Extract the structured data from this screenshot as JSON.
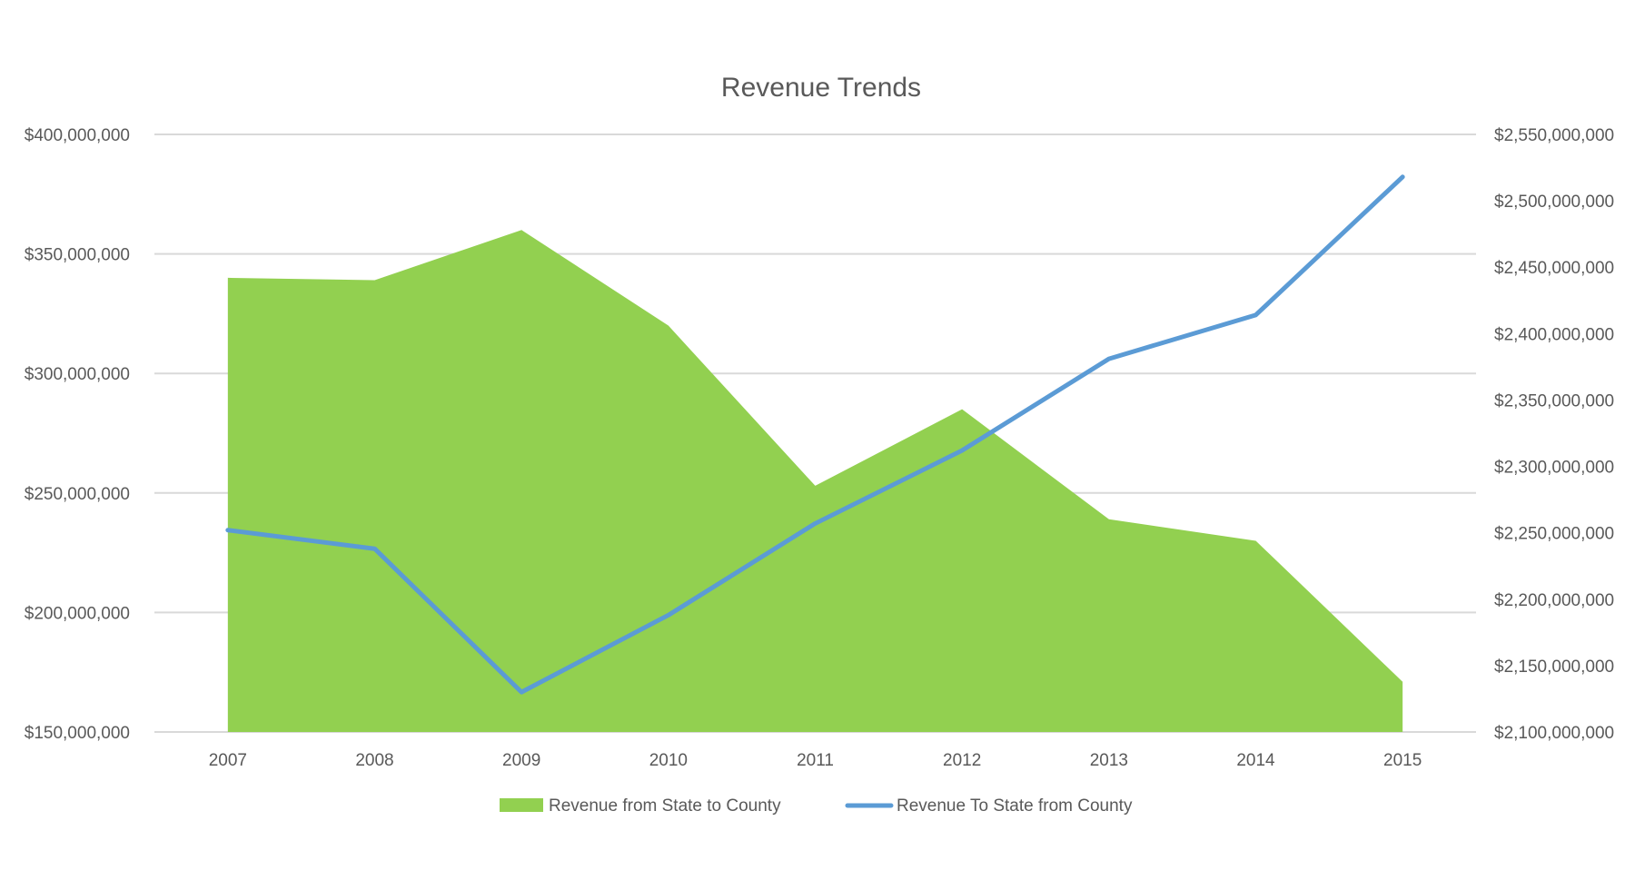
{
  "chart_data": {
    "type": "area",
    "title": "Revenue Trends",
    "xlabel": "",
    "ylabel": "",
    "categories": [
      "2007",
      "2008",
      "2009",
      "2010",
      "2011",
      "2012",
      "2013",
      "2014",
      "2015"
    ],
    "grid": true,
    "legend_position": "bottom",
    "y_left": {
      "range": [
        150000000,
        400000000
      ],
      "ticks": [
        150000000,
        200000000,
        250000000,
        300000000,
        350000000,
        400000000
      ],
      "tick_labels": [
        "$150,000,000",
        "$200,000,000",
        "$250,000,000",
        "$300,000,000",
        "$350,000,000",
        "$400,000,000"
      ]
    },
    "y_right": {
      "range": [
        2100000000,
        2550000000
      ],
      "ticks": [
        2100000000,
        2150000000,
        2200000000,
        2250000000,
        2300000000,
        2350000000,
        2400000000,
        2450000000,
        2500000000,
        2550000000
      ],
      "tick_labels": [
        "$2,100,000,000",
        "$2,150,000,000",
        "$2,200,000,000",
        "$2,250,000,000",
        "$2,300,000,000",
        "$2,350,000,000",
        "$2,400,000,000",
        "$2,450,000,000",
        "$2,500,000,000",
        "$2,550,000,000"
      ]
    },
    "series": [
      {
        "name": "Revenue from State to County",
        "type": "area",
        "axis": "left",
        "color": "#92d050",
        "values": [
          340000000,
          339000000,
          360000000,
          320000000,
          253000000,
          285000000,
          239000000,
          230000000,
          171000000
        ]
      },
      {
        "name": "Revenue To State from County",
        "type": "line",
        "axis": "right",
        "color": "#5b9bd5",
        "values": [
          2252000000,
          2238000000,
          2130000000,
          2188000000,
          2257000000,
          2312000000,
          2381000000,
          2414000000,
          2518000000
        ]
      }
    ]
  }
}
